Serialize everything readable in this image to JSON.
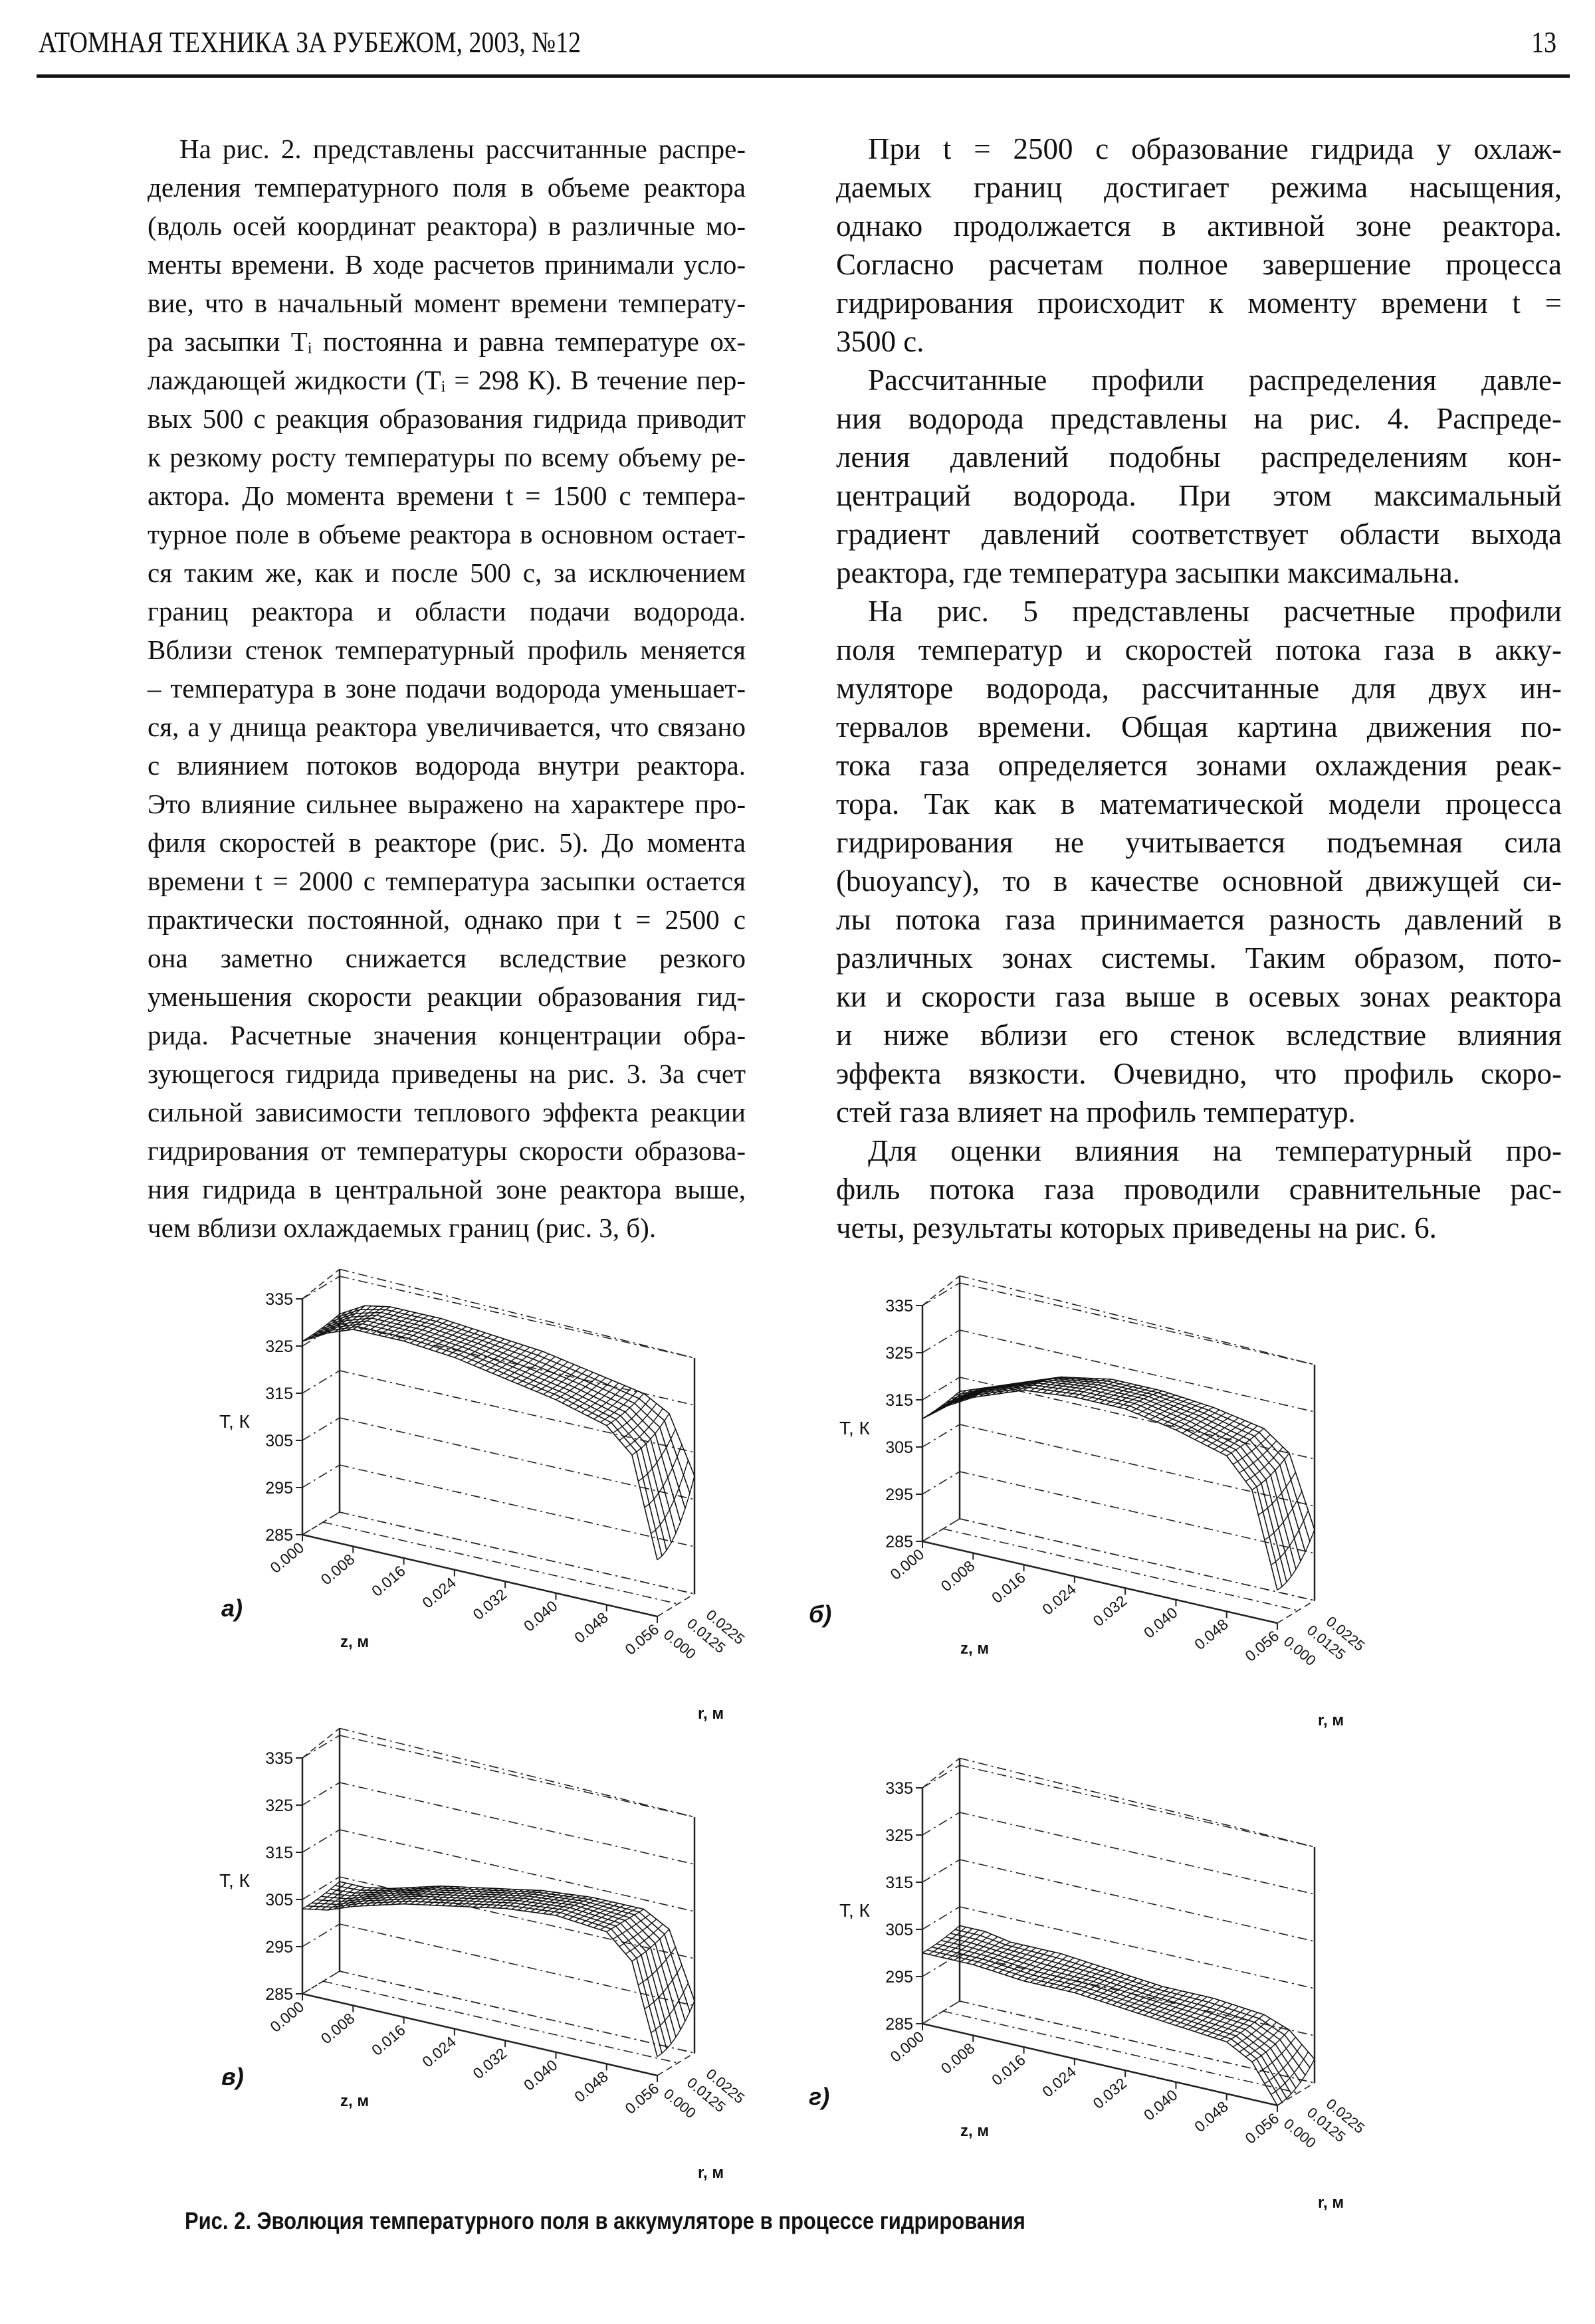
{
  "header": {
    "running_title": "АТОМНАЯ ТЕХНИКА ЗА РУБЕЖОМ, 2003, №12",
    "page_number": "13"
  },
  "left_column": [
    {
      "text": "На рис. 2. представлены рассчитанные распре-",
      "indent": true
    },
    {
      "text": "деления температурного поля в объеме реактора"
    },
    {
      "text": "(вдоль осей координат реактора) в различные мо-"
    },
    {
      "text": "менты времени. В ходе расчетов принимали усло-"
    },
    {
      "text": "вие, что в начальный момент времени температу-"
    },
    {
      "text": "ра засыпки Tᵢ постоянна и равна температуре ох-"
    },
    {
      "text": "лаждающей жидкости (Tᵢ = 298 К). В течение пер-"
    },
    {
      "text": "вых 500 с реакция образования гидрида приводит"
    },
    {
      "text": "к резкому росту температуры по всему объему ре-"
    },
    {
      "text": "актора. До момента времени t = 1500 с темпера-"
    },
    {
      "text": "турное поле в объеме реактора в основном остает-"
    },
    {
      "text": "ся таким же, как и после 500 с, за исключением"
    },
    {
      "text": "границ реактора и области подачи водорода."
    },
    {
      "text": "Вблизи стенок температурный профиль меняется"
    },
    {
      "text": "– температура в зоне подачи водорода уменьшает-"
    },
    {
      "text": "ся, а у днища реактора увеличивается, что связано"
    },
    {
      "text": "с влиянием потоков водорода внутри реактора."
    },
    {
      "text": "Это влияние сильнее выражено на характере про-"
    },
    {
      "text": "филя скоростей в реакторе (рис. 5). До момента"
    },
    {
      "text": "времени t = 2000 с температура засыпки остается"
    },
    {
      "text": "практически постоянной, однако при t = 2500 с"
    },
    {
      "text": "она заметно снижается вследствие резкого"
    },
    {
      "text": "уменьшения скорости реакции образования гид-"
    },
    {
      "text": "рида. Расчетные значения концентрации обра-"
    },
    {
      "text": "зующегося гидрида приведены на рис. 3. За счет"
    },
    {
      "text": "сильной зависимости теплового эффекта реакции"
    },
    {
      "text": "гидрирования от температуры скорости образова-"
    },
    {
      "text": "ния гидрида в центральной зоне реактора выше,"
    },
    {
      "text": "чем вблизи охлаждаемых границ (рис. 3, б).",
      "last": true
    }
  ],
  "right_column": [
    {
      "text": "При t = 2500 с образование гидрида у охлаж-",
      "indent": true
    },
    {
      "text": "даемых границ достигает режима насыщения,"
    },
    {
      "text": "однако продолжается в активной зоне реактора."
    },
    {
      "text": "Согласно расчетам полное завершение процесса"
    },
    {
      "text": "гидрирования происходит к моменту времени t ="
    },
    {
      "text": "3500 с.",
      "last": true
    },
    {
      "text": "Рассчитанные профили распределения давле-",
      "indent": true
    },
    {
      "text": "ния водорода представлены на рис. 4. Распреде-"
    },
    {
      "text": "ления давлений подобны распределениям кон-"
    },
    {
      "text": "центраций водорода. При этом максимальный"
    },
    {
      "text": "градиент давлений соответствует области выхода"
    },
    {
      "text": "реактора, где температура засыпки максимальна.",
      "last": true
    },
    {
      "text": "На рис. 5 представлены расчетные профили",
      "indent": true
    },
    {
      "text": "поля температур и скоростей потока газа в акку-"
    },
    {
      "text": "муляторе водорода, рассчитанные для двух ин-"
    },
    {
      "text": "тервалов времени. Общая картина движения по-"
    },
    {
      "text": "тока газа определяется зонами охлаждения реак-"
    },
    {
      "text": "тора. Так как в математической модели процесса"
    },
    {
      "text": "гидрирования не учитывается подъемная сила"
    },
    {
      "text": "(buoyancy), то в качестве основной движущей си-"
    },
    {
      "text": "лы потока газа принимается разность давлений в"
    },
    {
      "text": "различных зонах системы. Таким образом, пото-"
    },
    {
      "text": "ки и скорости газа выше в осевых зонах реактора"
    },
    {
      "text": "и ниже вблизи его стенок вследствие влияния"
    },
    {
      "text": "эффекта вязкости. Очевидно, что профиль скоро-"
    },
    {
      "text": "стей газа влияет на профиль температур.",
      "last": true
    },
    {
      "text": "Для оценки влияния на температурный про-",
      "indent": true
    },
    {
      "text": "филь потока газа проводили сравнительные рас-"
    },
    {
      "text": "четы, результаты которых приведены на рис. 6.",
      "last": true
    }
  ],
  "figure_caption": "Рис. 2. Эволюция температурного поля в аккумуляторе в процессе гидрирования",
  "chart_data": [
    {
      "type": "surface3d",
      "panel_label": "а)",
      "zlabel": "T, К",
      "xlabel": "z, м",
      "ylabel": "r, м",
      "T_ticks": [
        "335",
        "325",
        "315",
        "305",
        "295",
        "285"
      ],
      "z_ticks": [
        "0.000",
        "0.008",
        "0.016",
        "0.024",
        "0.032",
        "0.040",
        "0.048",
        "0.056"
      ],
      "r_ticks": [
        "0.000",
        "0.0125",
        "0.0225"
      ],
      "T_range": [
        285,
        335
      ],
      "surface": {
        "z": [
          0,
          0.004,
          0.008,
          0.016,
          0.024,
          0.032,
          0.04,
          0.048,
          0.052,
          0.056
        ],
        "T_at_r": [
          {
            "r": 0.0,
            "T": [
              326,
              329,
              331,
              331,
              330,
              328,
              326,
              323,
              318,
              297
            ]
          },
          {
            "r": 0.0225,
            "T": [
              327,
              330,
              331,
              331,
              330,
              329,
              327,
              325,
              322,
              310
            ]
          }
        ]
      }
    },
    {
      "type": "surface3d",
      "panel_label": "б)",
      "zlabel": "T, К",
      "xlabel": "z, м",
      "ylabel": "r, м",
      "T_ticks": [
        "335",
        "325",
        "315",
        "305",
        "295",
        "285"
      ],
      "z_ticks": [
        "0.000",
        "0.008",
        "0.016",
        "0.024",
        "0.032",
        "0.040",
        "0.048",
        "0.056"
      ],
      "r_ticks": [
        "0.000",
        "0.0125",
        "0.0225"
      ],
      "T_range": [
        285,
        335
      ],
      "surface": {
        "z": [
          0,
          0.004,
          0.008,
          0.016,
          0.024,
          0.032,
          0.04,
          0.048,
          0.052,
          0.056
        ],
        "T_at_r": [
          {
            "r": 0.0,
            "T": [
              311,
              315,
              318,
              322,
              323,
              323,
              321,
              318,
              312,
              292
            ]
          },
          {
            "r": 0.0225,
            "T": [
              312,
              314,
              316,
              320,
              322,
              322,
              321,
              319,
              315,
              300
            ]
          }
        ]
      }
    },
    {
      "type": "surface3d",
      "panel_label": "в)",
      "zlabel": "T, К",
      "xlabel": "z, м",
      "ylabel": "r, м",
      "T_ticks": [
        "335",
        "325",
        "315",
        "305",
        "295",
        "285"
      ],
      "z_ticks": [
        "0.000",
        "0.008",
        "0.016",
        "0.024",
        "0.032",
        "0.040",
        "0.048",
        "0.056"
      ],
      "r_ticks": [
        "0.000",
        "0.0125",
        "0.0225"
      ],
      "T_range": [
        285,
        335
      ],
      "surface": {
        "z": [
          0,
          0.004,
          0.008,
          0.016,
          0.024,
          0.032,
          0.04,
          0.048,
          0.052,
          0.056
        ],
        "T_at_r": [
          {
            "r": 0.0,
            "T": [
              303,
              304,
              306,
              309,
              311,
              313,
              314,
              313,
              308,
              289
            ]
          },
          {
            "r": 0.0225,
            "T": [
              304,
              304,
              305,
              308,
              310,
              312,
              313,
              313,
              310,
              296
            ]
          }
        ]
      }
    },
    {
      "type": "surface3d",
      "panel_label": "г)",
      "zlabel": "T, К",
      "xlabel": "z, м",
      "ylabel": "r, м",
      "T_ticks": [
        "335",
        "325",
        "315",
        "305",
        "295",
        "285"
      ],
      "z_ticks": [
        "0.000",
        "0.008",
        "0.016",
        "0.024",
        "0.032",
        "0.040",
        "0.048",
        "0.056"
      ],
      "r_ticks": [
        "0.000",
        "0.0125",
        "0.0225"
      ],
      "T_range": [
        285,
        335
      ],
      "surface": {
        "z": [
          0,
          0.004,
          0.008,
          0.016,
          0.024,
          0.032,
          0.04,
          0.048,
          0.052,
          0.056
        ],
        "T_at_r": [
          {
            "r": 0.0,
            "T": [
              300,
              300,
              300,
              299,
              299,
              298,
              297,
              296,
              293,
              285
            ]
          },
          {
            "r": 0.0225,
            "T": [
              301,
              301,
              300,
              300,
              299,
              298,
              298,
              297,
              295,
              290
            ]
          }
        ]
      }
    }
  ]
}
